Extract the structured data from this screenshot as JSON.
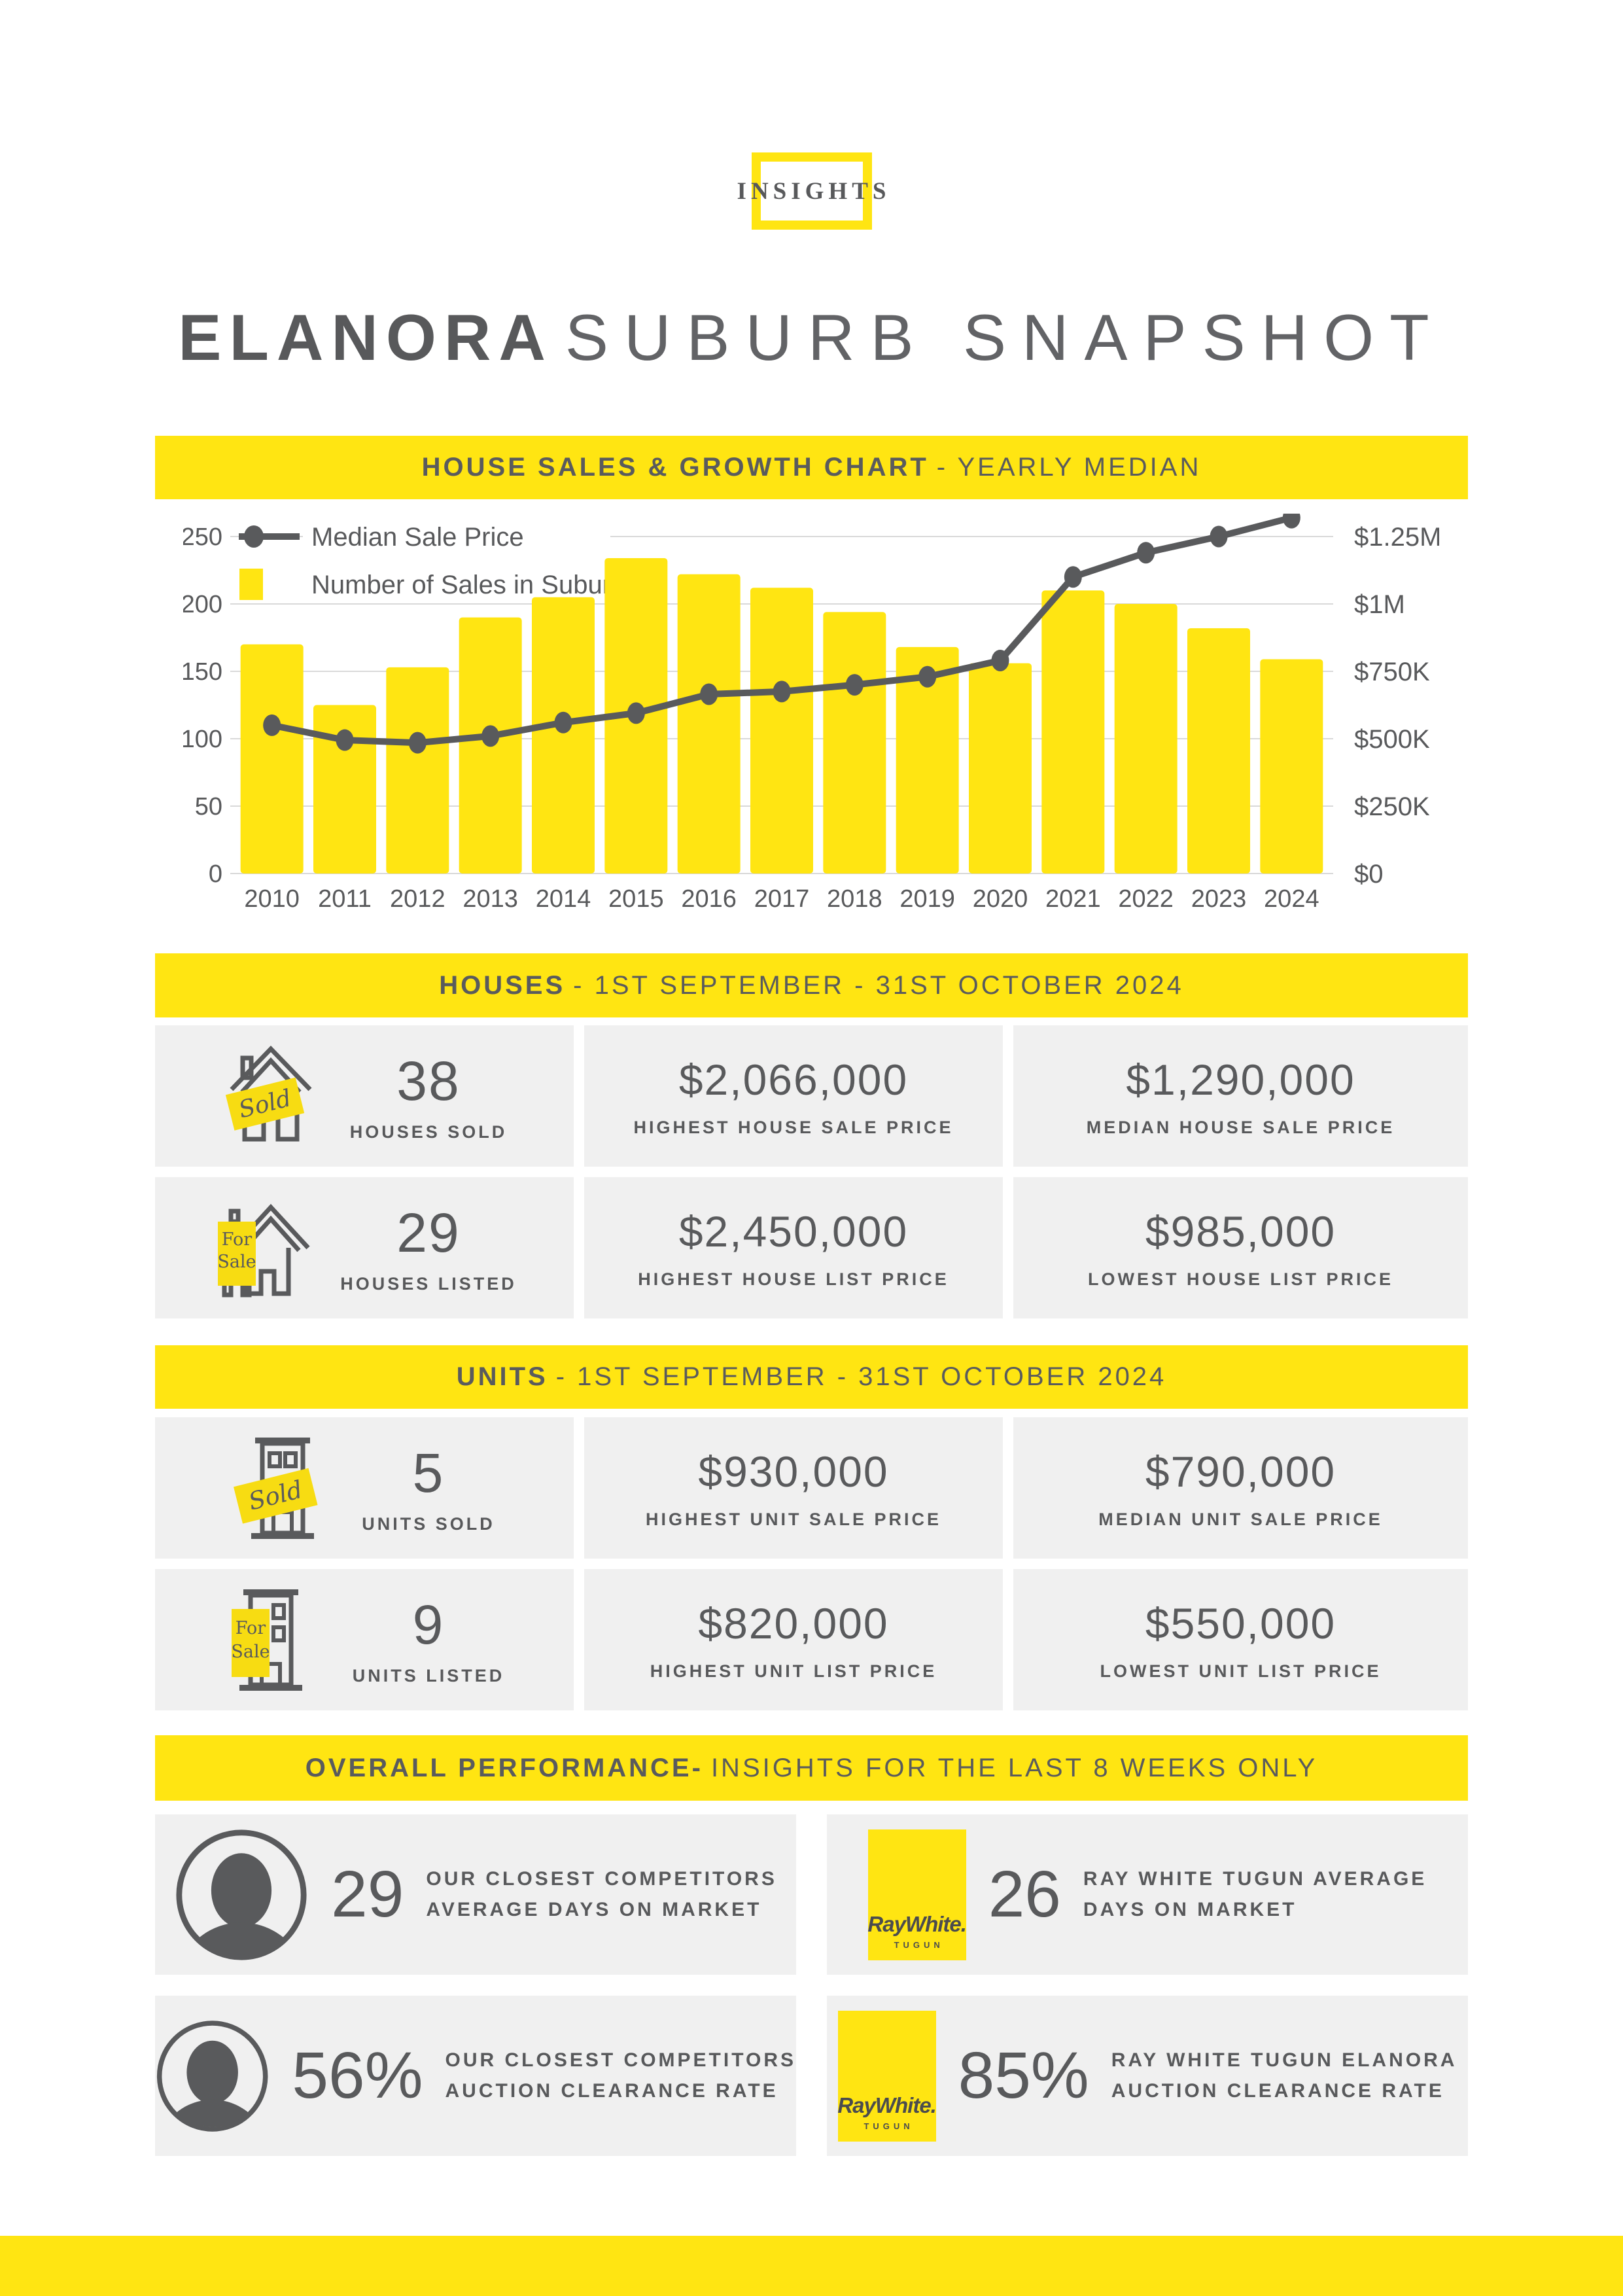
{
  "badge": {
    "label": "INSIGHTS"
  },
  "title": {
    "bold": "ELANORA",
    "light": "SUBURB SNAPSHOT"
  },
  "colors": {
    "accent_yellow": "#FFE512",
    "dark_gray": "#58595B",
    "card_gray": "#F0F0F0",
    "gridline": "#D9D9D9"
  },
  "signs": {
    "sold": "Sold",
    "for": "For",
    "sale": "Sale"
  },
  "chart_section": {
    "heading_bold": "HOUSE SALES & GROWTH CHART",
    "heading_light": "- YEARLY MEDIAN"
  },
  "chart_data": {
    "type": "bar+line combo",
    "title": "House Sales & Growth Chart - Yearly Median",
    "categories": [
      2010,
      2011,
      2012,
      2013,
      2014,
      2015,
      2016,
      2017,
      2018,
      2019,
      2020,
      2021,
      2022,
      2023,
      2024
    ],
    "series": [
      {
        "name": "Number of Sales in Suburb",
        "type": "bar",
        "axis": "left",
        "color": "#FFE512",
        "values": [
          170,
          125,
          153,
          190,
          205,
          234,
          222,
          212,
          194,
          168,
          156,
          210,
          200,
          182,
          159
        ]
      },
      {
        "name": "Median Sale Price",
        "type": "line",
        "axis": "right",
        "color": "#595A5C",
        "values": [
          550000,
          495000,
          485000,
          510000,
          560000,
          595000,
          665000,
          675000,
          700000,
          730000,
          790000,
          1100000,
          1190000,
          1250000,
          1320000
        ]
      }
    ],
    "left_axis": {
      "ticks": [
        0,
        50,
        100,
        150,
        200,
        250
      ],
      "max": 250
    },
    "right_axis": {
      "ticks": [
        "$0",
        "$250K",
        "$500K",
        "$750K",
        "$1M",
        "$1.25M"
      ],
      "max": 1250000
    },
    "grid": "horizontal",
    "legend_position": "top-left-inside"
  },
  "houses_section": {
    "heading_bold": "HOUSES",
    "heading_light": "- 1ST SEPTEMBER - 31ST OCTOBER 2024",
    "cards": [
      {
        "icon": "house-sold",
        "value": "38",
        "label": "HOUSES SOLD"
      },
      {
        "value": "$2,066,000",
        "label": "HIGHEST HOUSE SALE PRICE"
      },
      {
        "value": "$1,290,000",
        "label": "MEDIAN HOUSE SALE PRICE"
      },
      {
        "icon": "house-for-sale",
        "value": "29",
        "label": "HOUSES LISTED"
      },
      {
        "value": "$2,450,000",
        "label": "HIGHEST HOUSE LIST PRICE"
      },
      {
        "value": "$985,000",
        "label": "LOWEST HOUSE LIST PRICE"
      }
    ]
  },
  "units_section": {
    "heading_bold": "UNITS",
    "heading_light": "- 1ST SEPTEMBER - 31ST OCTOBER 2024",
    "cards": [
      {
        "icon": "building-sold",
        "value": "5",
        "label": "UNITS SOLD"
      },
      {
        "value": "$930,000",
        "label": "HIGHEST UNIT SALE PRICE"
      },
      {
        "value": "$790,000",
        "label": "MEDIAN UNIT SALE PRICE"
      },
      {
        "icon": "building-for-sale",
        "value": "9",
        "label": "UNITS LISTED"
      },
      {
        "value": "$820,000",
        "label": "HIGHEST UNIT LIST PRICE"
      },
      {
        "value": "$550,000",
        "label": "LOWEST UNIT LIST PRICE"
      }
    ]
  },
  "performance_section": {
    "heading_bold": "OVERALL PERFORMANCE-",
    "heading_light": "INSIGHTS FOR THE LAST 8 WEEKS ONLY",
    "cards": [
      {
        "icon": "person",
        "value": "29",
        "label_line1": "OUR CLOSEST COMPETITORS",
        "label_line2": "AVERAGE DAYS ON MARKET"
      },
      {
        "icon": "raywhite",
        "value": "26",
        "label_line1": "RAY WHITE TUGUN AVERAGE",
        "label_line2": "DAYS ON MARKET"
      },
      {
        "icon": "person",
        "value": "56%",
        "label_line1": "OUR CLOSEST COMPETITORS",
        "label_line2": "AUCTION CLEARANCE RATE"
      },
      {
        "icon": "raywhite",
        "value": "85%",
        "label_line1": "RAY WHITE TUGUN ELANORA",
        "label_line2": "AUCTION CLEARANCE RATE"
      }
    ]
  },
  "raywhite_logo": {
    "brand": "RayWhite.",
    "sub": "TUGUN"
  }
}
